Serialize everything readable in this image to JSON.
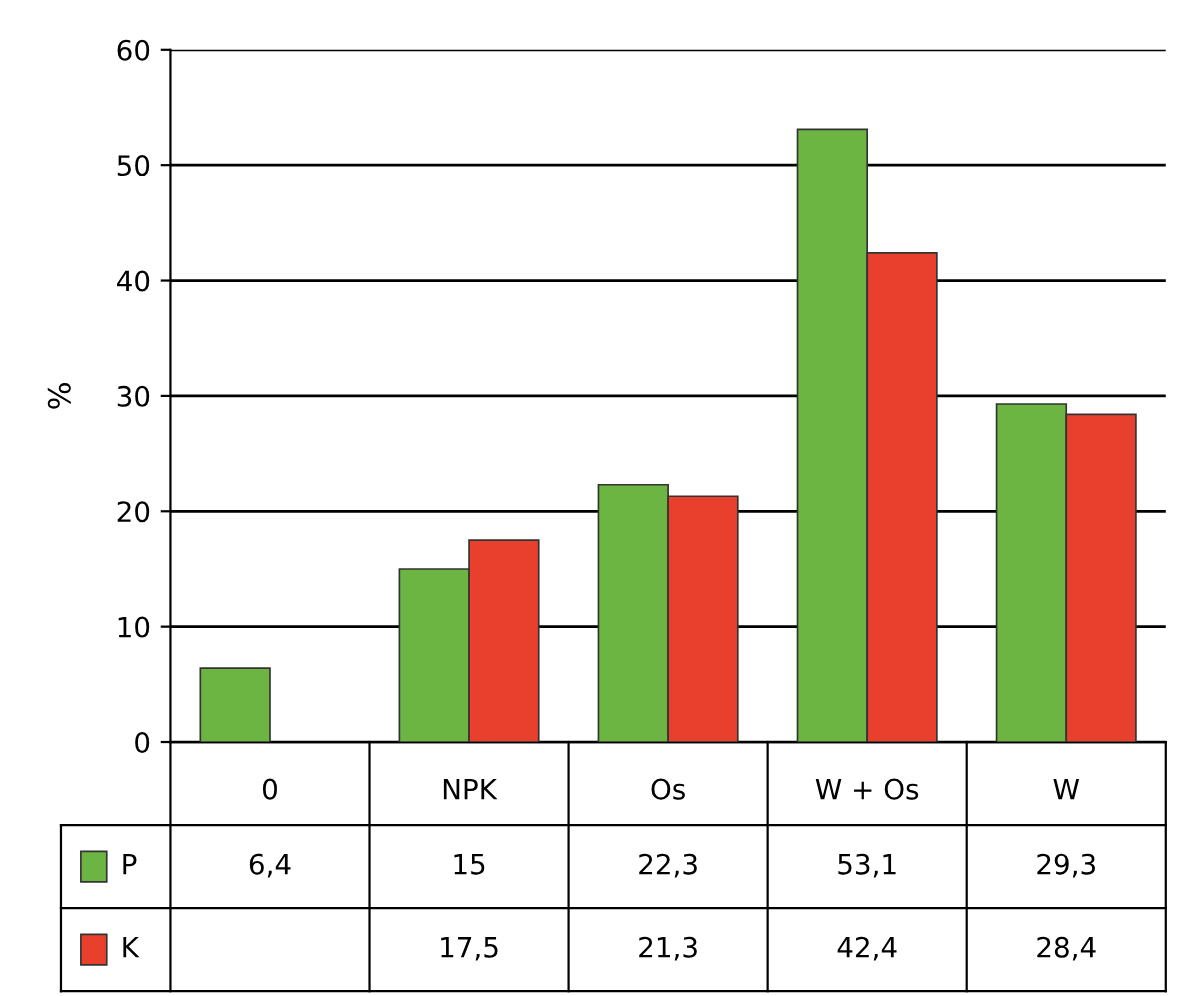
{
  "chart_data": {
    "type": "bar",
    "ylabel": "%",
    "categories": [
      "0",
      "NPK",
      "Os",
      "W + Os",
      "W"
    ],
    "series": [
      {
        "name": "P",
        "color": "#6cb543",
        "values": [
          6.4,
          15,
          22.3,
          53.1,
          29.3
        ],
        "value_labels": [
          "6,4",
          "15",
          "22,3",
          "53,1",
          "29,3"
        ]
      },
      {
        "name": "K",
        "color": "#e8402c",
        "values": [
          null,
          17.5,
          21.3,
          42.4,
          28.4
        ],
        "value_labels": [
          null,
          "17,5",
          "21,3",
          "42,4",
          "28,4"
        ]
      }
    ],
    "ylim": [
      0,
      60
    ],
    "yticks": [
      0,
      10,
      20,
      30,
      40,
      50,
      60
    ],
    "grid": "y",
    "legend": "bottom left"
  }
}
